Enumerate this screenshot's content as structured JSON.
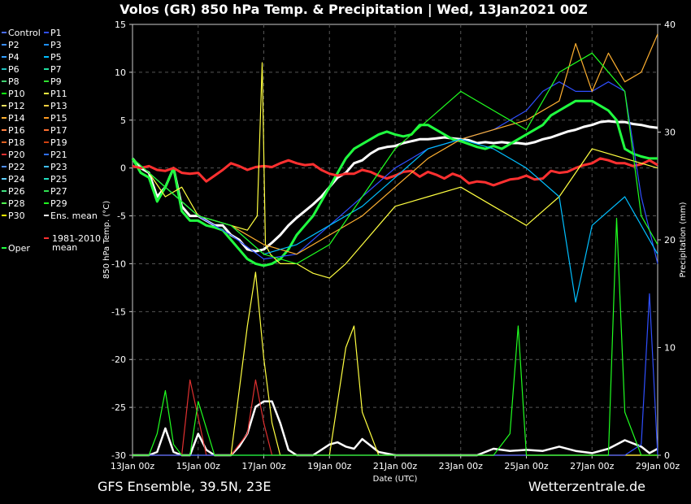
{
  "chart_data": {
    "type": "line",
    "title": "Volos  (GR)  850 hPa Temp. & Precipitation | Wed, 13Jan2021 00Z",
    "xlabel": "Date (UTC)",
    "ylabel_left": "850 hPa Temp. (°C)",
    "ylabel_right": "Precipitation (mm)",
    "ylim_left": [
      -30,
      15
    ],
    "ylim_right": [
      0,
      40
    ],
    "yticks_left": [
      15,
      10,
      5,
      0,
      -5,
      -10,
      -15,
      -20,
      -25,
      -30
    ],
    "yticks_right": [
      40,
      30,
      20,
      10,
      0
    ],
    "xlim_days": [
      0,
      16
    ],
    "xticks": [
      {
        "day": 0,
        "label": "13Jan 00z"
      },
      {
        "day": 2,
        "label": "15Jan 00z"
      },
      {
        "day": 4,
        "label": "17Jan 00z"
      },
      {
        "day": 6,
        "label": "19Jan 00z"
      },
      {
        "day": 8,
        "label": "21Jan 00z"
      },
      {
        "day": 10,
        "label": "23Jan 00z"
      },
      {
        "day": 12,
        "label": "25Jan 00z"
      },
      {
        "day": 14,
        "label": "27Jan 00z"
      },
      {
        "day": 16,
        "label": "29Jan 00z"
      }
    ],
    "grid": true,
    "legend_position": "left-outside",
    "legend": [
      {
        "label": "Control",
        "color": "#4a6cff"
      },
      {
        "label": "P1",
        "color": "#2f4fff"
      },
      {
        "label": "P2",
        "color": "#3a8cff"
      },
      {
        "label": "P3",
        "color": "#1e90ff"
      },
      {
        "label": "P4",
        "color": "#33a0ff"
      },
      {
        "label": "P5",
        "color": "#00bfff"
      },
      {
        "label": "P6",
        "color": "#20c0c0"
      },
      {
        "label": "P7",
        "color": "#20e0a0"
      },
      {
        "label": "P8",
        "color": "#40d070"
      },
      {
        "label": "P9",
        "color": "#30e030"
      },
      {
        "label": "P10",
        "color": "#10ff10"
      },
      {
        "label": "P11",
        "color": "#ffff40"
      },
      {
        "label": "P12",
        "color": "#f0e060"
      },
      {
        "label": "P13",
        "color": "#ffd040"
      },
      {
        "label": "P14",
        "color": "#ffb030"
      },
      {
        "label": "P15",
        "color": "#ff9a20"
      },
      {
        "label": "P16",
        "color": "#ff8040"
      },
      {
        "label": "P17",
        "color": "#ff7030"
      },
      {
        "label": "P18",
        "color": "#e06020"
      },
      {
        "label": "P19",
        "color": "#d04010"
      },
      {
        "label": "P20",
        "color": "#e03030"
      },
      {
        "label": "P21",
        "color": "#3070ff"
      },
      {
        "label": "P22",
        "color": "#5090ff"
      },
      {
        "label": "P23",
        "color": "#40c0ff"
      },
      {
        "label": "P24",
        "color": "#60d0ff"
      },
      {
        "label": "P25",
        "color": "#20e0c0"
      },
      {
        "label": "P26",
        "color": "#40e080"
      },
      {
        "label": "P27",
        "color": "#30e050"
      },
      {
        "label": "P28",
        "color": "#50ff50"
      },
      {
        "label": "P29",
        "color": "#20ff20"
      },
      {
        "label": "P30",
        "color": "#ffff00"
      },
      {
        "label": "Ens. mean",
        "color": "#ffffff"
      },
      {
        "label": "Oper",
        "color": "#20ff40"
      },
      {
        "label_lines": [
          "1981-2010",
          "mean"
        ],
        "color": "#ff3030"
      }
    ],
    "series": [
      {
        "name": "Ens. mean",
        "color": "#ffffff",
        "axis": "left",
        "x": [
          0,
          0.25,
          0.5,
          0.75,
          1,
          1.25,
          1.5,
          1.75,
          2,
          2.25,
          2.5,
          2.75,
          3,
          3.25,
          3.5,
          3.75,
          4,
          4.25,
          4.5,
          4.75,
          5,
          5.25,
          5.5,
          5.75,
          6,
          6.25,
          6.5,
          6.75,
          7,
          7.25,
          7.5,
          7.75,
          8,
          8.25,
          8.5,
          8.75,
          9,
          9.25,
          9.5,
          9.75,
          10,
          10.25,
          10.5,
          10.75,
          11,
          11.25,
          11.5,
          11.75,
          12,
          12.25,
          12.5,
          12.75,
          13,
          13.25,
          13.5,
          13.75,
          14,
          14.25,
          14.5,
          14.75,
          15,
          15.25,
          15.5,
          15.75,
          16
        ],
        "y": [
          1,
          0,
          -0.5,
          -3,
          -2,
          0,
          -4,
          -5,
          -5,
          -5.5,
          -6,
          -6,
          -7,
          -7.5,
          -8.5,
          -8.7,
          -8.5,
          -7.8,
          -7,
          -6,
          -5.2,
          -4.5,
          -3.8,
          -3,
          -2,
          -1,
          -0.5,
          0.5,
          0.8,
          1.5,
          2,
          2.2,
          2.3,
          2.6,
          2.8,
          3,
          3,
          3.1,
          3.2,
          3.1,
          3,
          2.9,
          2.6,
          2.7,
          2.6,
          2.7,
          2.6,
          2.6,
          2.5,
          2.7,
          3,
          3.2,
          3.5,
          3.8,
          4,
          4.3,
          4.5,
          4.8,
          4.9,
          4.8,
          4.8,
          4.6,
          4.5,
          4.3,
          4.2
        ]
      },
      {
        "name": "Oper",
        "color": "#20ff40",
        "axis": "left",
        "x": [
          0,
          0.25,
          0.5,
          0.75,
          1,
          1.25,
          1.5,
          1.75,
          2,
          2.25,
          2.5,
          2.75,
          3,
          3.25,
          3.5,
          3.75,
          4,
          4.25,
          4.5,
          4.75,
          5,
          5.25,
          5.5,
          5.75,
          6,
          6.25,
          6.5,
          6.75,
          7,
          7.25,
          7.5,
          7.75,
          8,
          8.25,
          8.5,
          8.75,
          9,
          9.25,
          9.5,
          9.75,
          10,
          10.25,
          10.5,
          10.75,
          11,
          11.25,
          11.5,
          11.75,
          12,
          12.25,
          12.5,
          12.75,
          13,
          13.25,
          13.5,
          13.75,
          14,
          14.25,
          14.5,
          14.75,
          15,
          15.25,
          15.5,
          15.75,
          16
        ],
        "y": [
          1,
          -0.5,
          -1,
          -3.5,
          -2,
          0,
          -4.5,
          -5.5,
          -5.5,
          -6,
          -6.2,
          -6.5,
          -7.5,
          -8.5,
          -9.5,
          -10,
          -10.2,
          -10,
          -9.5,
          -8.5,
          -7,
          -6,
          -5,
          -3.5,
          -2,
          -0.5,
          1,
          2,
          2.5,
          3,
          3.5,
          3.8,
          3.5,
          3.3,
          3.5,
          4.5,
          4.5,
          4,
          3.5,
          3,
          2.8,
          2.5,
          2.2,
          2,
          2.3,
          2,
          2.5,
          3,
          3.5,
          4,
          4.5,
          5.5,
          6,
          6.5,
          7,
          7,
          7,
          6.5,
          6,
          5,
          2,
          1.5,
          1.2,
          1,
          1
        ]
      },
      {
        "name": "1981-2010 mean",
        "color": "#ff3030",
        "axis": "left",
        "x": [
          0,
          0.25,
          0.5,
          0.75,
          1,
          1.25,
          1.5,
          1.75,
          2,
          2.25,
          2.5,
          2.75,
          3,
          3.25,
          3.5,
          3.75,
          4,
          4.25,
          4.5,
          4.75,
          5,
          5.25,
          5.5,
          5.75,
          6,
          6.25,
          6.5,
          6.75,
          7,
          7.25,
          7.5,
          7.75,
          8,
          8.25,
          8.5,
          8.75,
          9,
          9.25,
          9.5,
          9.75,
          10,
          10.25,
          10.5,
          10.75,
          11,
          11.25,
          11.5,
          11.75,
          12,
          12.25,
          12.5,
          12.75,
          13,
          13.25,
          13.5,
          13.75,
          14,
          14.25,
          14.5,
          14.75,
          15,
          15.25,
          15.5,
          15.75,
          16
        ],
        "y": [
          0.2,
          0,
          0.2,
          -0.2,
          -0.3,
          0,
          -0.5,
          -0.6,
          -0.5,
          -1.4,
          -0.8,
          -0.2,
          0.5,
          0.2,
          -0.2,
          0.1,
          0.2,
          0.1,
          0.5,
          0.8,
          0.5,
          0.3,
          0.4,
          -0.2,
          -0.6,
          -0.8,
          -0.6,
          -0.6,
          -0.2,
          -0.4,
          -0.8,
          -1.1,
          -0.8,
          -0.4,
          -0.3,
          -0.9,
          -0.4,
          -0.7,
          -1.1,
          -0.6,
          -0.9,
          -1.6,
          -1.4,
          -1.5,
          -1.8,
          -1.5,
          -1.2,
          -1.1,
          -0.8,
          -1.2,
          -1.1,
          -0.3,
          -0.5,
          -0.4,
          0,
          0.3,
          0.5,
          1,
          0.8,
          0.5,
          0.5,
          0.2,
          0.4,
          0.8,
          0.3
        ]
      },
      {
        "name": "P1",
        "color": "#2f4fff",
        "axis": "left",
        "x": [
          0,
          1,
          2,
          3,
          4,
          5,
          6,
          7,
          8,
          9,
          10,
          11,
          12,
          12.5,
          13,
          13.5,
          14,
          14.5,
          15,
          15.5,
          16
        ],
        "y": [
          1,
          -2,
          -5,
          -7,
          -9.5,
          -9,
          -6,
          -3,
          0,
          2,
          3,
          4,
          6,
          8,
          9,
          8,
          8,
          9,
          8,
          -3,
          -10
        ]
      },
      {
        "name": "P11",
        "color": "#ffff40",
        "axis": "left",
        "x": [
          0,
          0.5,
          1,
          1.5,
          2,
          2.5,
          3,
          3.5,
          3.8,
          3.95,
          4.05,
          4.2,
          4.5,
          5,
          5.5,
          6,
          6.5,
          7,
          7.5,
          8,
          9,
          10,
          11,
          12,
          13,
          14,
          15,
          16
        ],
        "y": [
          1,
          -0.5,
          -3,
          -2,
          -5,
          -5.5,
          -6,
          -6.5,
          -5,
          11,
          -8,
          -9,
          -10,
          -10,
          -11,
          -11.5,
          -10,
          -8,
          -6,
          -4,
          -3,
          -2,
          -4,
          -6,
          -3,
          2,
          1,
          0
        ]
      },
      {
        "name": "P14",
        "color": "#ffb030",
        "axis": "left",
        "x": [
          0,
          1,
          2,
          3,
          4,
          5,
          6,
          7,
          8,
          9,
          10,
          11,
          12,
          13,
          13.5,
          14,
          14.5,
          15,
          15.5,
          16
        ],
        "y": [
          1,
          -2,
          -5,
          -6,
          -8,
          -9,
          -7,
          -5,
          -2,
          1,
          3,
          4,
          5,
          7,
          13,
          8,
          12,
          9,
          10,
          14
        ]
      },
      {
        "name": "P5",
        "color": "#00bfff",
        "axis": "left",
        "x": [
          0,
          1,
          2,
          3,
          4,
          5,
          6,
          7,
          8,
          9,
          10,
          11,
          12,
          13,
          13.5,
          14,
          15,
          16
        ],
        "y": [
          1,
          -2,
          -5,
          -6,
          -9,
          -8,
          -6,
          -4,
          -1,
          2,
          3,
          2,
          0,
          -3,
          -14,
          -6,
          -3,
          -9
        ]
      },
      {
        "name": "P29",
        "color": "#20ff20",
        "axis": "left",
        "x": [
          0,
          1,
          2,
          3,
          4,
          5,
          6,
          7,
          8,
          9,
          10,
          11,
          12,
          13,
          14,
          15,
          15.5,
          16
        ],
        "y": [
          1,
          -2,
          -5,
          -6,
          -9,
          -10,
          -8,
          -3,
          2,
          5,
          8,
          6,
          4,
          10,
          12,
          8,
          -5,
          -8
        ]
      },
      {
        "name": "Ens. mean precip",
        "color": "#ffffff",
        "axis": "right",
        "x": [
          0,
          0.5,
          0.75,
          1,
          1.25,
          1.5,
          1.75,
          2,
          2.25,
          2.5,
          3,
          3.25,
          3.5,
          3.75,
          4,
          4.25,
          4.5,
          4.75,
          5,
          5.5,
          6,
          6.25,
          6.5,
          6.75,
          7,
          7.5,
          8,
          9,
          10,
          10.5,
          11,
          11.5,
          12,
          12.5,
          13,
          13.5,
          14,
          14.5,
          15,
          15.5,
          15.75,
          16
        ],
        "y": [
          0,
          0,
          0.3,
          2.5,
          0.3,
          0,
          0,
          2,
          0.5,
          0,
          0,
          0.8,
          2,
          4.5,
          5,
          5,
          3,
          0.5,
          0,
          0,
          1,
          1.2,
          0.8,
          0.6,
          1.5,
          0.3,
          0,
          0,
          0,
          0,
          0.6,
          0.4,
          0.5,
          0.4,
          0.8,
          0.4,
          0.2,
          0.6,
          1.4,
          0.8,
          0.2,
          0.6
        ]
      },
      {
        "name": "P20 precip",
        "color": "#e03030",
        "axis": "right",
        "x": [
          0,
          1.5,
          1.75,
          2,
          2.25,
          3,
          3.5,
          3.75,
          4,
          4.25,
          5,
          6,
          7,
          8,
          16
        ],
        "y": [
          0,
          0,
          7,
          3.5,
          0,
          0,
          2,
          7,
          3,
          0,
          0,
          0,
          0,
          0,
          0
        ]
      },
      {
        "name": "P11 precip",
        "color": "#ffff40",
        "axis": "right",
        "x": [
          0,
          3,
          3.5,
          3.75,
          4,
          4.25,
          4.5,
          5,
          6,
          6.5,
          6.75,
          7,
          7.5,
          8,
          16
        ],
        "y": [
          0,
          0,
          12,
          17,
          9,
          3,
          0,
          0,
          0,
          10,
          12,
          4,
          0,
          0,
          0
        ]
      },
      {
        "name": "P1 precip",
        "color": "#2f4fff",
        "axis": "right",
        "x": [
          0,
          14,
          15,
          15.5,
          15.75,
          16
        ],
        "y": [
          0,
          0,
          0,
          1,
          15,
          0
        ]
      },
      {
        "name": "P29 precip",
        "color": "#20ff20",
        "axis": "right",
        "x": [
          0,
          0.5,
          0.75,
          1,
          1.25,
          1.5,
          1.75,
          2,
          2.5,
          10,
          11,
          11.5,
          11.75,
          12,
          13,
          14.5,
          14.75,
          15,
          15.5,
          16
        ],
        "y": [
          0,
          0,
          2,
          6,
          1,
          0,
          0,
          5,
          0,
          0,
          0,
          2,
          12,
          0,
          0,
          0,
          22,
          4,
          0,
          0
        ]
      }
    ]
  },
  "footer": {
    "left": "GFS Ensemble, 39.5N, 23E",
    "right": "Wetterzentrale.de"
  }
}
